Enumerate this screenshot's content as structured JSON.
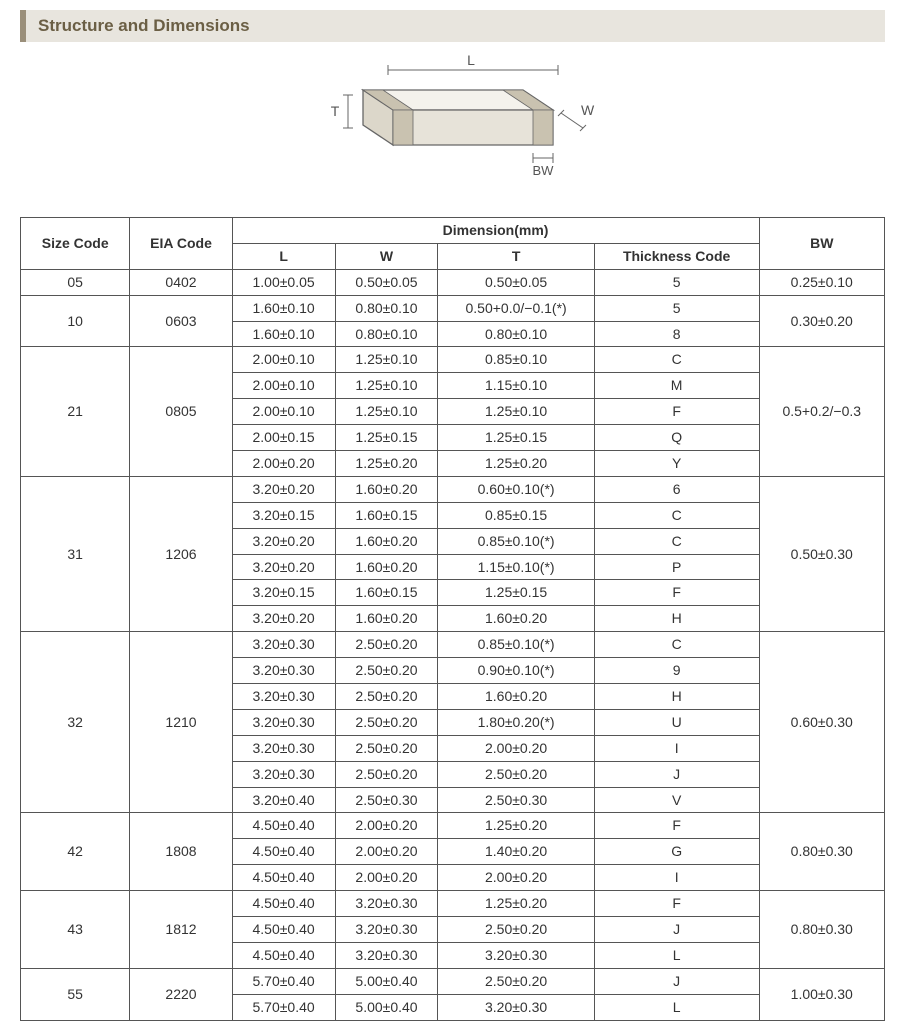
{
  "section_title": "Structure and Dimensions",
  "diagram": {
    "labels": {
      "L": "L",
      "W": "W",
      "T": "T",
      "BW": "BW"
    },
    "stroke": "#666666",
    "fill_top": "#f4f2ec",
    "fill_front": "#e7e3d9",
    "fill_side": "#dcd7ca",
    "band_fill": "#c9c2b0",
    "label_fontsize": 14,
    "label_color": "#555555"
  },
  "table": {
    "header": {
      "size_code": "Size Code",
      "eia_code": "EIA Code",
      "dimension": "Dimension(mm)",
      "L": "L",
      "W": "W",
      "T": "T",
      "thickness_code": "Thickness  Code",
      "BW": "BW"
    },
    "groups": [
      {
        "size": "05",
        "eia": "0402",
        "bw": "0.25±0.10",
        "rows": [
          {
            "L": "1.00±0.05",
            "W": "0.50±0.05",
            "T": "0.50±0.05",
            "tc": "5"
          }
        ]
      },
      {
        "size": "10",
        "eia": "0603",
        "bw": "0.30±0.20",
        "rows": [
          {
            "L": "1.60±0.10",
            "W": "0.80±0.10",
            "T": "0.50+0.0/−0.1(*)",
            "tc": "5"
          },
          {
            "L": "1.60±0.10",
            "W": "0.80±0.10",
            "T": "0.80±0.10",
            "tc": "8"
          }
        ]
      },
      {
        "size": "21",
        "eia": "0805",
        "bw": "0.5+0.2/−0.3",
        "rows": [
          {
            "L": "2.00±0.10",
            "W": "1.25±0.10",
            "T": "0.85±0.10",
            "tc": "C"
          },
          {
            "L": "2.00±0.10",
            "W": "1.25±0.10",
            "T": "1.15±0.10",
            "tc": "M"
          },
          {
            "L": "2.00±0.10",
            "W": "1.25±0.10",
            "T": "1.25±0.10",
            "tc": "F"
          },
          {
            "L": "2.00±0.15",
            "W": "1.25±0.15",
            "T": "1.25±0.15",
            "tc": "Q"
          },
          {
            "L": "2.00±0.20",
            "W": "1.25±0.20",
            "T": "1.25±0.20",
            "tc": "Y"
          }
        ]
      },
      {
        "size": "31",
        "eia": "1206",
        "bw": "0.50±0.30",
        "rows": [
          {
            "L": "3.20±0.20",
            "W": "1.60±0.20",
            "T": "0.60±0.10(*)",
            "tc": "6"
          },
          {
            "L": "3.20±0.15",
            "W": "1.60±0.15",
            "T": "0.85±0.15",
            "tc": "C"
          },
          {
            "L": "3.20±0.20",
            "W": "1.60±0.20",
            "T": "0.85±0.10(*)",
            "tc": "C"
          },
          {
            "L": "3.20±0.20",
            "W": "1.60±0.20",
            "T": "1.15±0.10(*)",
            "tc": "P"
          },
          {
            "L": "3.20±0.15",
            "W": "1.60±0.15",
            "T": "1.25±0.15",
            "tc": "F"
          },
          {
            "L": "3.20±0.20",
            "W": "1.60±0.20",
            "T": "1.60±0.20",
            "tc": "H"
          }
        ]
      },
      {
        "size": "32",
        "eia": "1210",
        "bw": "0.60±0.30",
        "rows": [
          {
            "L": "3.20±0.30",
            "W": "2.50±0.20",
            "T": "0.85±0.10(*)",
            "tc": "C"
          },
          {
            "L": "3.20±0.30",
            "W": "2.50±0.20",
            "T": "0.90±0.10(*)",
            "tc": "9"
          },
          {
            "L": "3.20±0.30",
            "W": "2.50±0.20",
            "T": "1.60±0.20",
            "tc": "H"
          },
          {
            "L": "3.20±0.30",
            "W": "2.50±0.20",
            "T": "1.80±0.20(*)",
            "tc": "U"
          },
          {
            "L": "3.20±0.30",
            "W": "2.50±0.20",
            "T": "2.00±0.20",
            "tc": "I"
          },
          {
            "L": "3.20±0.30",
            "W": "2.50±0.20",
            "T": "2.50±0.20",
            "tc": "J"
          },
          {
            "L": "3.20±0.40",
            "W": "2.50±0.30",
            "T": "2.50±0.30",
            "tc": "V"
          }
        ]
      },
      {
        "size": "42",
        "eia": "1808",
        "bw": "0.80±0.30",
        "rows": [
          {
            "L": "4.50±0.40",
            "W": "2.00±0.20",
            "T": "1.25±0.20",
            "tc": "F"
          },
          {
            "L": "4.50±0.40",
            "W": "2.00±0.20",
            "T": "1.40±0.20",
            "tc": "G"
          },
          {
            "L": "4.50±0.40",
            "W": "2.00±0.20",
            "T": "2.00±0.20",
            "tc": "I"
          }
        ]
      },
      {
        "size": "43",
        "eia": "1812",
        "bw": "0.80±0.30",
        "rows": [
          {
            "L": "4.50±0.40",
            "W": "3.20±0.30",
            "T": "1.25±0.20",
            "tc": "F"
          },
          {
            "L": "4.50±0.40",
            "W": "3.20±0.30",
            "T": "2.50±0.20",
            "tc": "J"
          },
          {
            "L": "4.50±0.40",
            "W": "3.20±0.30",
            "T": "3.20±0.30",
            "tc": "L"
          }
        ]
      },
      {
        "size": "55",
        "eia": "2220",
        "bw": "1.00±0.30",
        "rows": [
          {
            "L": "5.70±0.40",
            "W": "5.00±0.40",
            "T": "2.50±0.20",
            "tc": "J"
          },
          {
            "L": "5.70±0.40",
            "W": "5.00±0.40",
            "T": "3.20±0.30",
            "tc": "L"
          }
        ]
      }
    ]
  },
  "styles": {
    "border_color": "#555555",
    "header_bg": "#e8e5de",
    "header_accent": "#9a8f7a",
    "header_text": "#6b5f45",
    "body_font": "Arial",
    "table_fontsize": 14,
    "title_fontsize": 17
  }
}
